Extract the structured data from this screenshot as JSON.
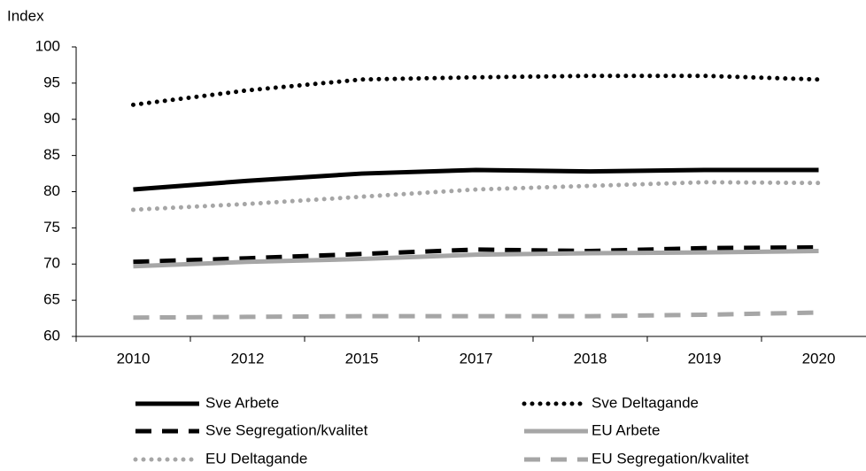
{
  "chart_data": {
    "type": "line",
    "y_label": "Index",
    "categories": [
      "2010",
      "2012",
      "2015",
      "2017",
      "2018",
      "2019",
      "2020"
    ],
    "ylim": [
      60,
      100
    ],
    "yticks": [
      60,
      65,
      70,
      75,
      80,
      85,
      90,
      95,
      100
    ],
    "series": [
      {
        "name": "Sve Arbete",
        "color": "#000000",
        "style": "solid",
        "values": [
          80.3,
          81.5,
          82.5,
          83,
          82.8,
          83,
          83
        ]
      },
      {
        "name": "Sve Deltagande",
        "color": "#000000",
        "style": "dotted",
        "values": [
          92,
          94,
          95.5,
          95.8,
          96,
          96,
          95.5
        ]
      },
      {
        "name": "Sve Segregation/kvalitet",
        "color": "#000000",
        "style": "dashed",
        "values": [
          70.3,
          70.8,
          71.4,
          72,
          71.8,
          72.2,
          72.3
        ]
      },
      {
        "name": "EU Arbete",
        "color": "#a6a6a6",
        "style": "solid",
        "values": [
          69.7,
          70.3,
          70.7,
          71.3,
          71.5,
          71.6,
          71.8
        ]
      },
      {
        "name": "EU Deltagande",
        "color": "#a6a6a6",
        "style": "dotted",
        "values": [
          77.5,
          78.3,
          79.3,
          80.3,
          80.8,
          81.3,
          81.2
        ]
      },
      {
        "name": "EU Segregation/kvalitet",
        "color": "#a6a6a6",
        "style": "dashed",
        "values": [
          62.6,
          62.7,
          62.8,
          62.8,
          62.8,
          63,
          63.3
        ]
      }
    ]
  }
}
